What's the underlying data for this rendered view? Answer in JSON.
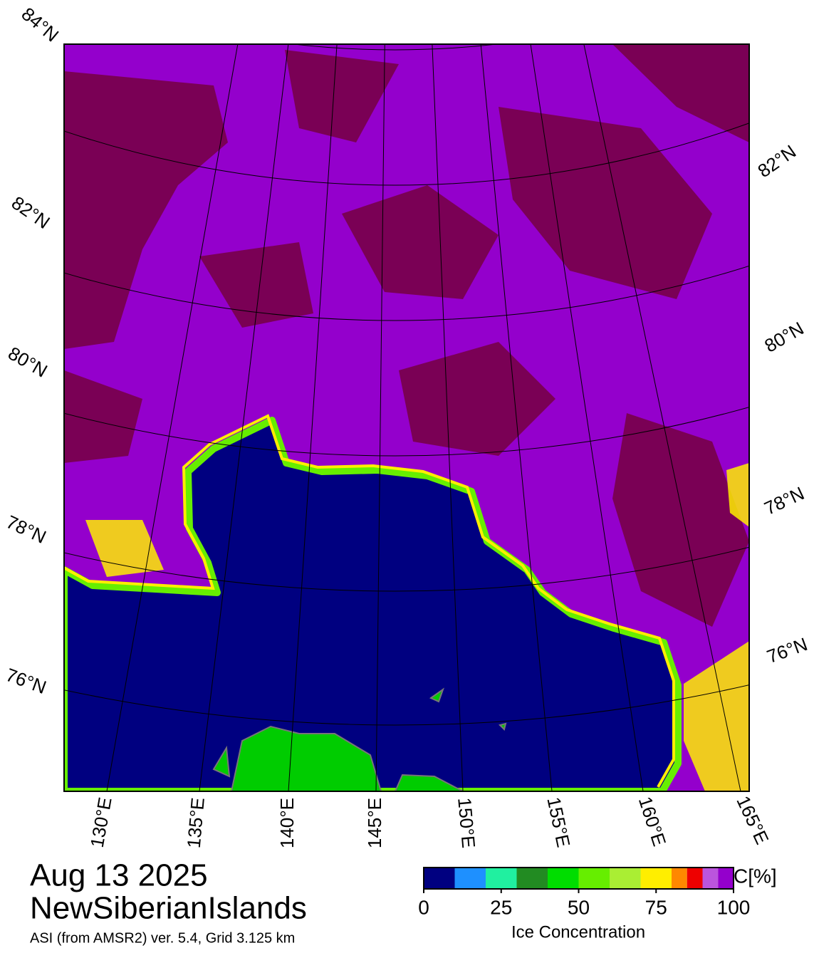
{
  "map": {
    "left_lat_labels": [
      "84°N",
      "82°N",
      "80°N",
      "78°N",
      "76°N"
    ],
    "right_lat_labels": [
      "82°N",
      "80°N",
      "78°N",
      "76°N"
    ],
    "lon_labels": [
      "130°E",
      "135°E",
      "140°E",
      "145°E",
      "150°E",
      "155°E",
      "160°E",
      "165°E"
    ]
  },
  "caption": {
    "date": "Aug 13 2025",
    "region": "NewSiberianIslands",
    "source": "ASI (from AMSR2) ver. 5.4,  Grid 3.125 km"
  },
  "colorbar": {
    "title": "Ice Concentration",
    "unit": "C[%]",
    "lim": [
      0,
      100
    ],
    "ticks": [
      0,
      25,
      50,
      75,
      100
    ],
    "bins": [
      0,
      10,
      20,
      30,
      40,
      50,
      60,
      70,
      80,
      85,
      90,
      95,
      100
    ],
    "colors": [
      "#000080",
      "#1e90ff",
      "#20f0a0",
      "#228b22",
      "#00dd00",
      "#66ee00",
      "#aaee33",
      "#ffee00",
      "#ff8800",
      "#ee0000",
      "#bb55dd",
      "#9400cc"
    ]
  }
}
